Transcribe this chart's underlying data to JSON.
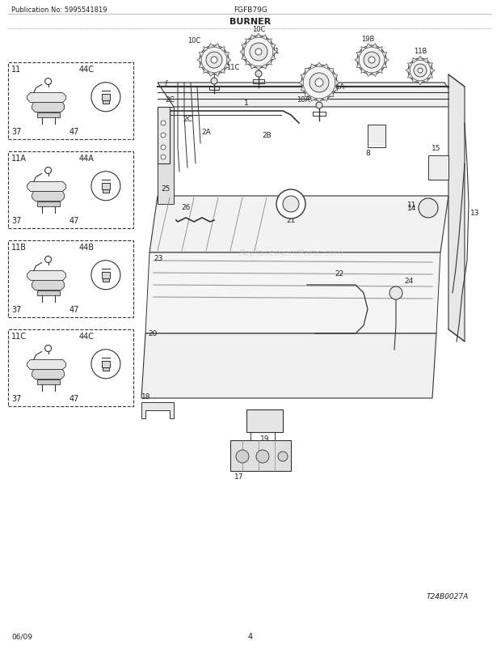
{
  "title_left": "Publication No: 5995541819",
  "title_center": "FGFB79G",
  "title_section": "BURNER",
  "footer_left": "06/09",
  "footer_center": "4",
  "footer_right": "T24B0027A",
  "bg_color": "#ffffff",
  "text_color": "#222222",
  "line_color": "#333333",
  "figsize": [
    6.2,
    8.03
  ],
  "dpi": 100,
  "left_boxes": [
    {
      "label_tl": "11",
      "label_tr": "44C",
      "label_bl": "37",
      "label_br": "47"
    },
    {
      "label_tl": "11A",
      "label_tr": "44A",
      "label_bl": "37",
      "label_br": "47"
    },
    {
      "label_tl": "11B",
      "label_tr": "44B",
      "label_bl": "37",
      "label_br": "47"
    },
    {
      "label_tl": "11C",
      "label_tr": "44C",
      "label_bl": "37",
      "label_br": "47"
    }
  ]
}
